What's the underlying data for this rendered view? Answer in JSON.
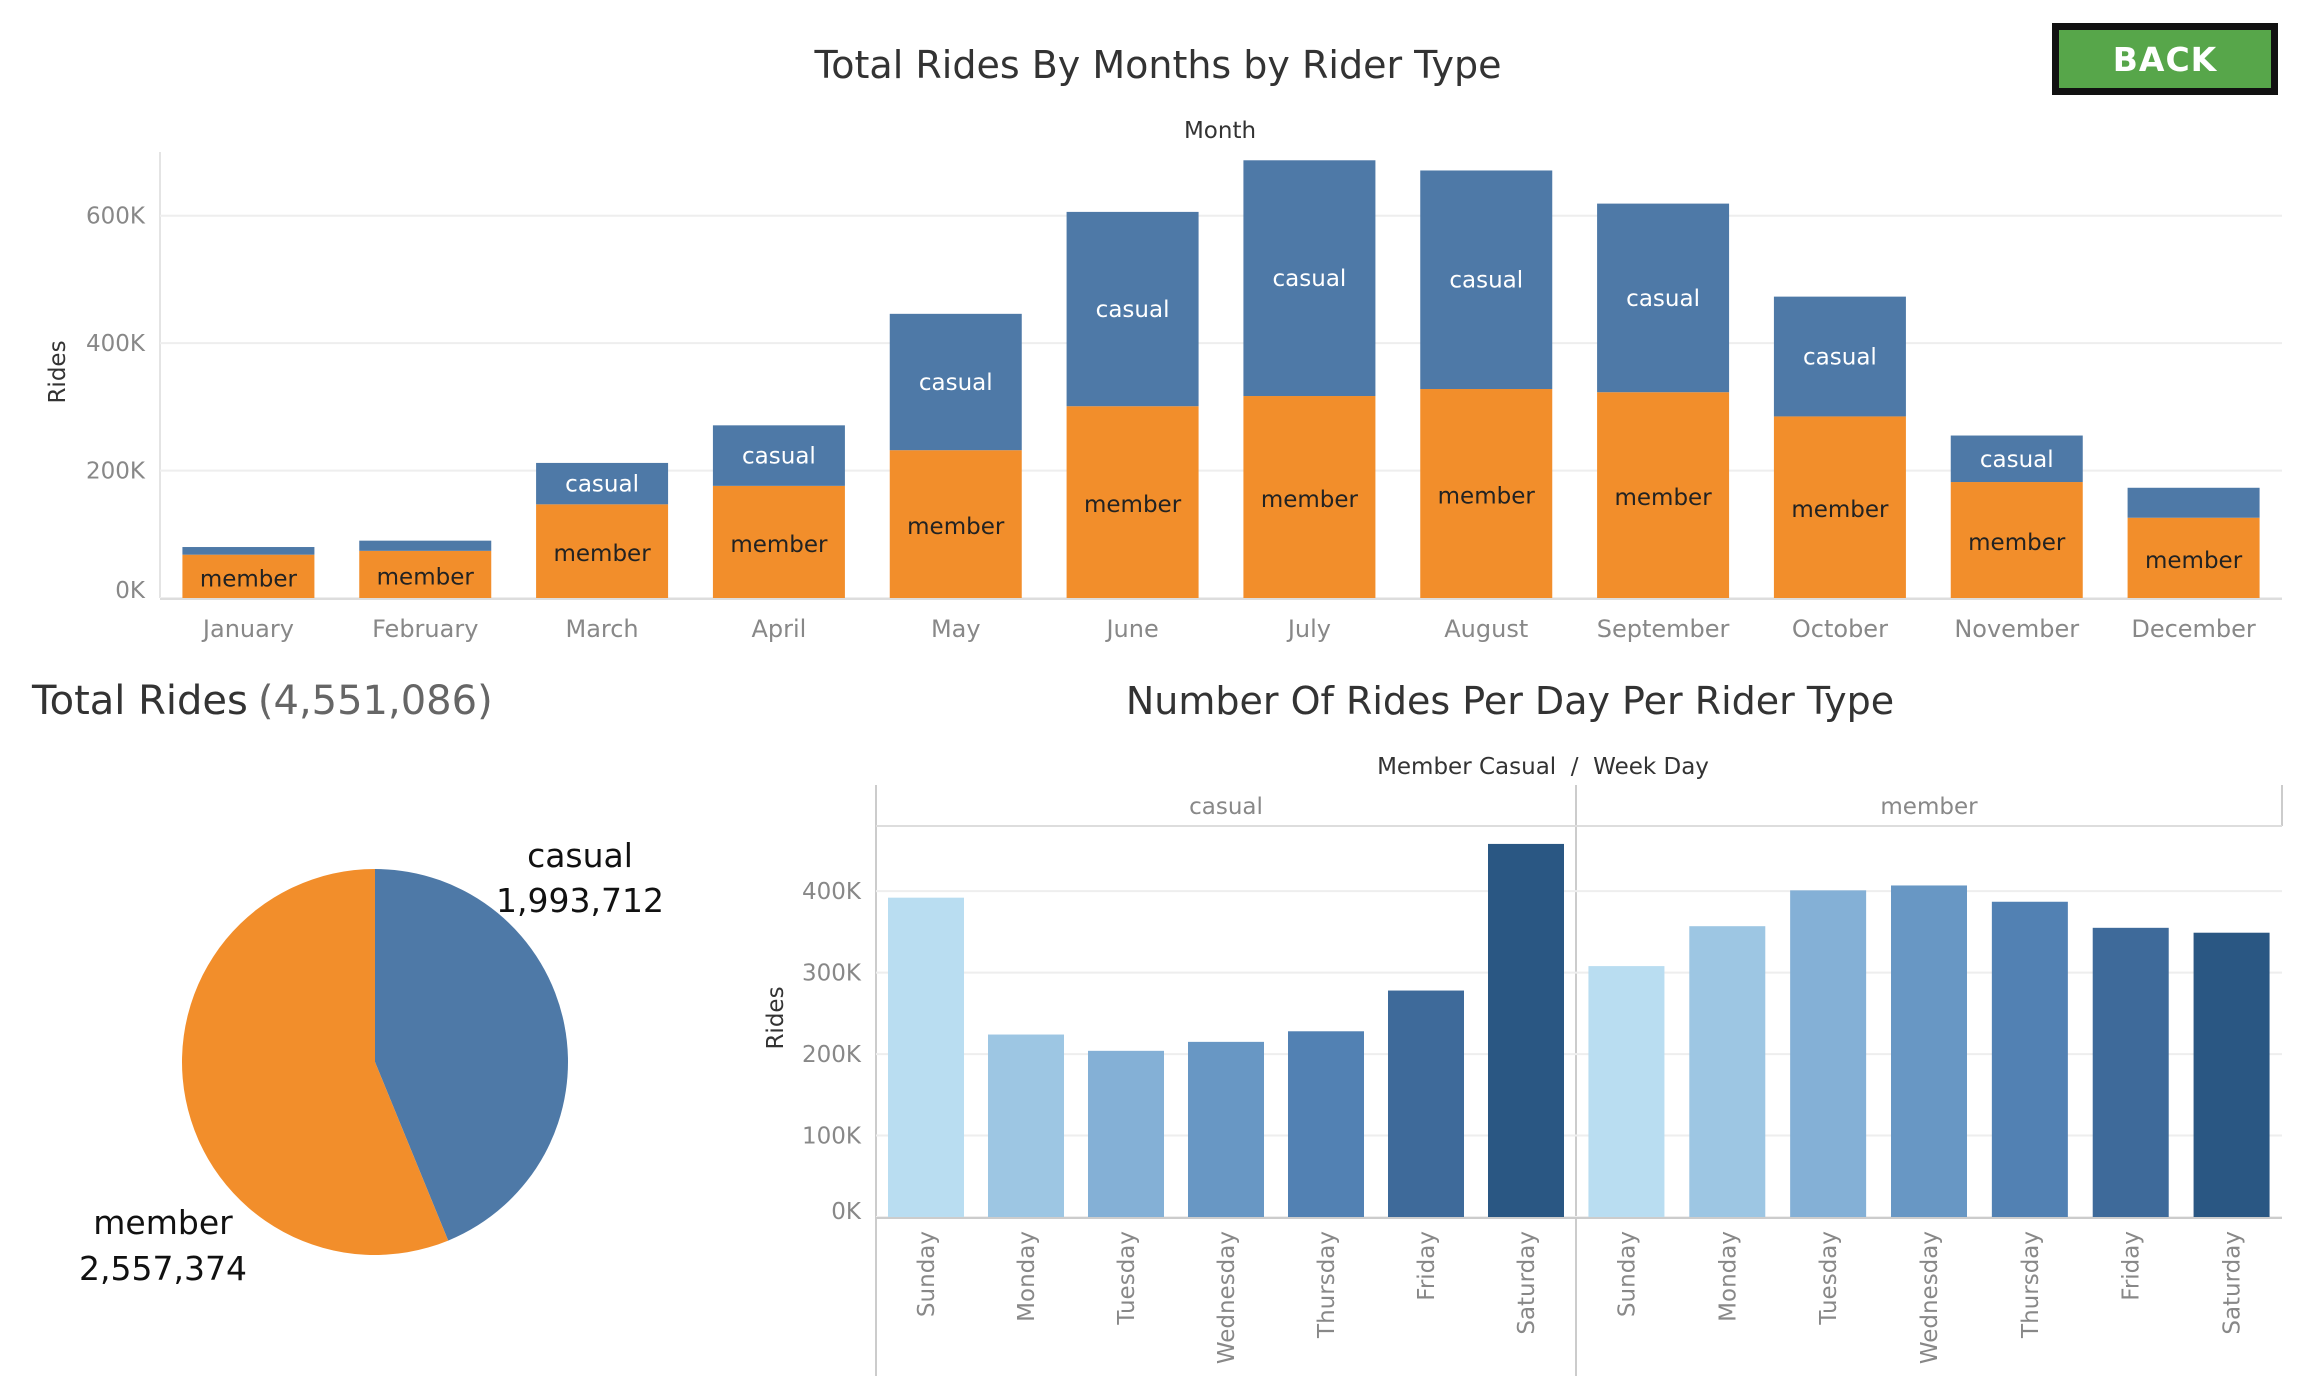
{
  "back_button": {
    "label": "BACK"
  },
  "colors": {
    "casual": "#4e79a7",
    "member": "#f28e2b",
    "grid": "#eeeeee",
    "axis_text": "#888888",
    "title_text": "#333333",
    "weekday_blues": [
      "#b9ddf1",
      "#9dc6e3",
      "#84b0d6",
      "#6897c4",
      "#5281b3",
      "#3e6a9a",
      "#2a5783"
    ]
  },
  "chart_data": [
    {
      "id": "monthly",
      "type": "bar",
      "stacked": true,
      "title": "Total Rides By Months by Rider Type",
      "header": "Month",
      "xlabel": "",
      "ylabel": "Rides",
      "ylim": [
        0,
        700000
      ],
      "yticks": [
        0,
        200000,
        400000,
        600000
      ],
      "ytick_labels": [
        "0K",
        "200K",
        "400K",
        "600K"
      ],
      "grid": true,
      "categories": [
        "January",
        "February",
        "March",
        "April",
        "May",
        "June",
        "July",
        "August",
        "September",
        "October",
        "November",
        "December"
      ],
      "series": [
        {
          "name": "member",
          "values": [
            68000,
            74000,
            147000,
            176000,
            232000,
            301000,
            317000,
            328000,
            323000,
            285000,
            182000,
            126000
          ]
        },
        {
          "name": "casual",
          "values": [
            12000,
            16000,
            65000,
            95000,
            214000,
            305000,
            370000,
            343000,
            296000,
            188000,
            73000,
            47000
          ]
        }
      ],
      "segment_labels": {
        "member": [
          "member",
          "member",
          "member",
          "member",
          "member",
          "member",
          "member",
          "member",
          "member",
          "member",
          "member",
          "member"
        ],
        "casual": [
          "",
          "",
          "casual",
          "casual",
          "casual",
          "casual",
          "casual",
          "casual",
          "casual",
          "casual",
          "casual",
          ""
        ]
      }
    },
    {
      "id": "total",
      "type": "pie",
      "title": "Total Rides",
      "title_value": "(4,551,086)",
      "slices": [
        {
          "name": "casual",
          "value": 1993712,
          "value_label": "1,993,712"
        },
        {
          "name": "member",
          "value": 2557374,
          "value_label": "2,557,374"
        }
      ]
    },
    {
      "id": "weekday",
      "type": "bar",
      "title": "Number Of Rides Per Day Per Rider Type",
      "header": "Member Casual  /  Week Day",
      "ylabel": "Rides",
      "ylim": [
        0,
        480000
      ],
      "yticks": [
        0,
        100000,
        200000,
        300000,
        400000
      ],
      "ytick_labels": [
        "0K",
        "100K",
        "200K",
        "300K",
        "400K"
      ],
      "grid": true,
      "panels": [
        "casual",
        "member"
      ],
      "categories": [
        "Sunday",
        "Monday",
        "Tuesday",
        "Wednesday",
        "Thursday",
        "Friday",
        "Saturday"
      ],
      "series": [
        {
          "name": "casual",
          "values": [
            392000,
            224000,
            204000,
            215000,
            228000,
            278000,
            458000
          ]
        },
        {
          "name": "member",
          "values": [
            308000,
            357000,
            401000,
            407000,
            387000,
            355000,
            349000
          ]
        }
      ]
    }
  ]
}
